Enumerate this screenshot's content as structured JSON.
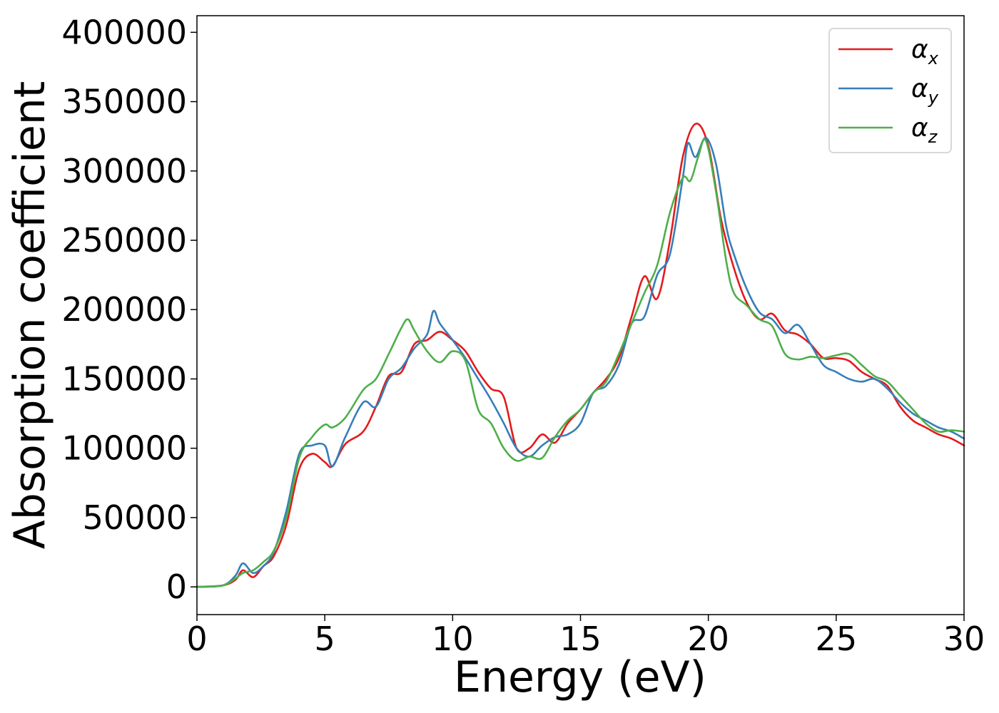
{
  "chart_data": {
    "type": "line",
    "title": "",
    "xlabel": "Energy (eV)",
    "ylabel": "Absorption coefficient",
    "xlim": [
      0,
      30
    ],
    "ylim": [
      -20000,
      412000
    ],
    "xticks": [
      0,
      5,
      10,
      15,
      20,
      25,
      30
    ],
    "yticks": [
      0,
      50000,
      100000,
      150000,
      200000,
      250000,
      300000,
      350000,
      400000
    ],
    "grid": false,
    "legend_position": "top-right",
    "series": [
      {
        "name": "α_x",
        "legend_symbol": "α",
        "legend_sub": "x",
        "color": "#e41a1c",
        "x": [
          0,
          1,
          1.5,
          1.8,
          2.2,
          2.6,
          3.0,
          3.5,
          4.0,
          4.5,
          5.0,
          5.3,
          5.8,
          6.5,
          7.0,
          7.5,
          8.0,
          8.5,
          9.0,
          9.5,
          10.0,
          10.5,
          11.0,
          11.5,
          12.0,
          12.5,
          13.0,
          13.5,
          14.0,
          14.5,
          15.0,
          15.5,
          16.0,
          16.5,
          17.0,
          17.5,
          18.0,
          18.5,
          19.0,
          19.5,
          20.0,
          20.5,
          21.0,
          21.5,
          22.0,
          22.5,
          23.0,
          23.5,
          24.0,
          24.5,
          25.0,
          25.5,
          26.0,
          26.5,
          27.0,
          27.5,
          28.0,
          28.5,
          29.0,
          29.5,
          30.0
        ],
        "y": [
          0,
          1000,
          5000,
          12000,
          7000,
          15000,
          22000,
          45000,
          85000,
          96000,
          90000,
          87000,
          103000,
          112000,
          130000,
          152000,
          155000,
          175000,
          178000,
          184000,
          178000,
          170000,
          155000,
          143000,
          137000,
          100000,
          100000,
          110000,
          104000,
          118000,
          128000,
          140000,
          150000,
          165000,
          195000,
          224000,
          208000,
          250000,
          310000,
          334000,
          318000,
          265000,
          230000,
          205000,
          193000,
          197000,
          185000,
          182000,
          175000,
          165000,
          165000,
          163000,
          155000,
          150000,
          145000,
          130000,
          120000,
          115000,
          110000,
          107000,
          102000
        ]
      },
      {
        "name": "α_y",
        "legend_symbol": "α",
        "legend_sub": "y",
        "color": "#377eb8",
        "x": [
          0,
          1,
          1.5,
          1.8,
          2.2,
          2.6,
          3.0,
          3.5,
          4.0,
          4.5,
          5.0,
          5.3,
          5.8,
          6.5,
          7.0,
          7.5,
          8.0,
          8.5,
          9.0,
          9.25,
          9.5,
          10.0,
          10.5,
          11.0,
          11.5,
          12.0,
          12.5,
          13.0,
          13.5,
          14.0,
          14.5,
          15.0,
          15.5,
          16.0,
          16.5,
          17.0,
          17.5,
          18.0,
          18.5,
          19.0,
          19.2,
          19.5,
          19.9,
          20.3,
          20.7,
          21.0,
          21.5,
          22.0,
          22.5,
          23.0,
          23.5,
          24.0,
          24.5,
          25.0,
          25.5,
          26.0,
          26.5,
          27.0,
          27.5,
          28.0,
          28.5,
          29.0,
          29.5,
          30.0
        ],
        "y": [
          0,
          1000,
          8000,
          17000,
          10000,
          15000,
          25000,
          55000,
          96000,
          102000,
          102000,
          87000,
          108000,
          133000,
          130000,
          150000,
          158000,
          172000,
          182000,
          199000,
          190000,
          178000,
          165000,
          150000,
          135000,
          118000,
          100000,
          94000,
          102000,
          108000,
          110000,
          118000,
          140000,
          145000,
          160000,
          190000,
          195000,
          225000,
          240000,
          295000,
          320000,
          310000,
          324000,
          305000,
          260000,
          240000,
          215000,
          198000,
          193000,
          183000,
          189000,
          175000,
          160000,
          155000,
          150000,
          148000,
          150000,
          143000,
          133000,
          125000,
          120000,
          115000,
          112000,
          107000
        ]
      },
      {
        "name": "α_z",
        "legend_symbol": "α",
        "legend_sub": "z",
        "color": "#4daf4a",
        "x": [
          0,
          1,
          1.5,
          1.8,
          2.2,
          2.6,
          3.0,
          3.5,
          4.0,
          4.5,
          5.0,
          5.3,
          5.8,
          6.5,
          7.0,
          7.5,
          8.0,
          8.25,
          8.5,
          9.0,
          9.5,
          10.0,
          10.5,
          11.0,
          11.5,
          12.0,
          12.5,
          13.0,
          13.5,
          14.0,
          14.5,
          15.0,
          15.5,
          16.0,
          16.5,
          17.0,
          17.5,
          18.0,
          18.5,
          19.0,
          19.3,
          19.6,
          19.9,
          20.3,
          20.7,
          21.0,
          21.5,
          22.0,
          22.5,
          23.0,
          23.5,
          24.0,
          24.5,
          25.0,
          25.5,
          26.0,
          26.5,
          27.0,
          27.5,
          28.0,
          28.5,
          29.0,
          29.5,
          30.0
        ],
        "y": [
          0,
          1000,
          6000,
          10000,
          12000,
          18000,
          26000,
          50000,
          93000,
          108000,
          117000,
          115000,
          122000,
          142000,
          150000,
          168000,
          187000,
          193000,
          185000,
          170000,
          162000,
          170000,
          163000,
          128000,
          118000,
          100000,
          91000,
          94000,
          93000,
          108000,
          120000,
          128000,
          140000,
          148000,
          168000,
          190000,
          212000,
          232000,
          270000,
          295000,
          293000,
          310000,
          322000,
          285000,
          235000,
          212000,
          203000,
          193000,
          188000,
          168000,
          164000,
          166000,
          165000,
          167000,
          168000,
          160000,
          152000,
          148000,
          138000,
          128000,
          118000,
          112000,
          113000,
          112000
        ]
      }
    ]
  }
}
